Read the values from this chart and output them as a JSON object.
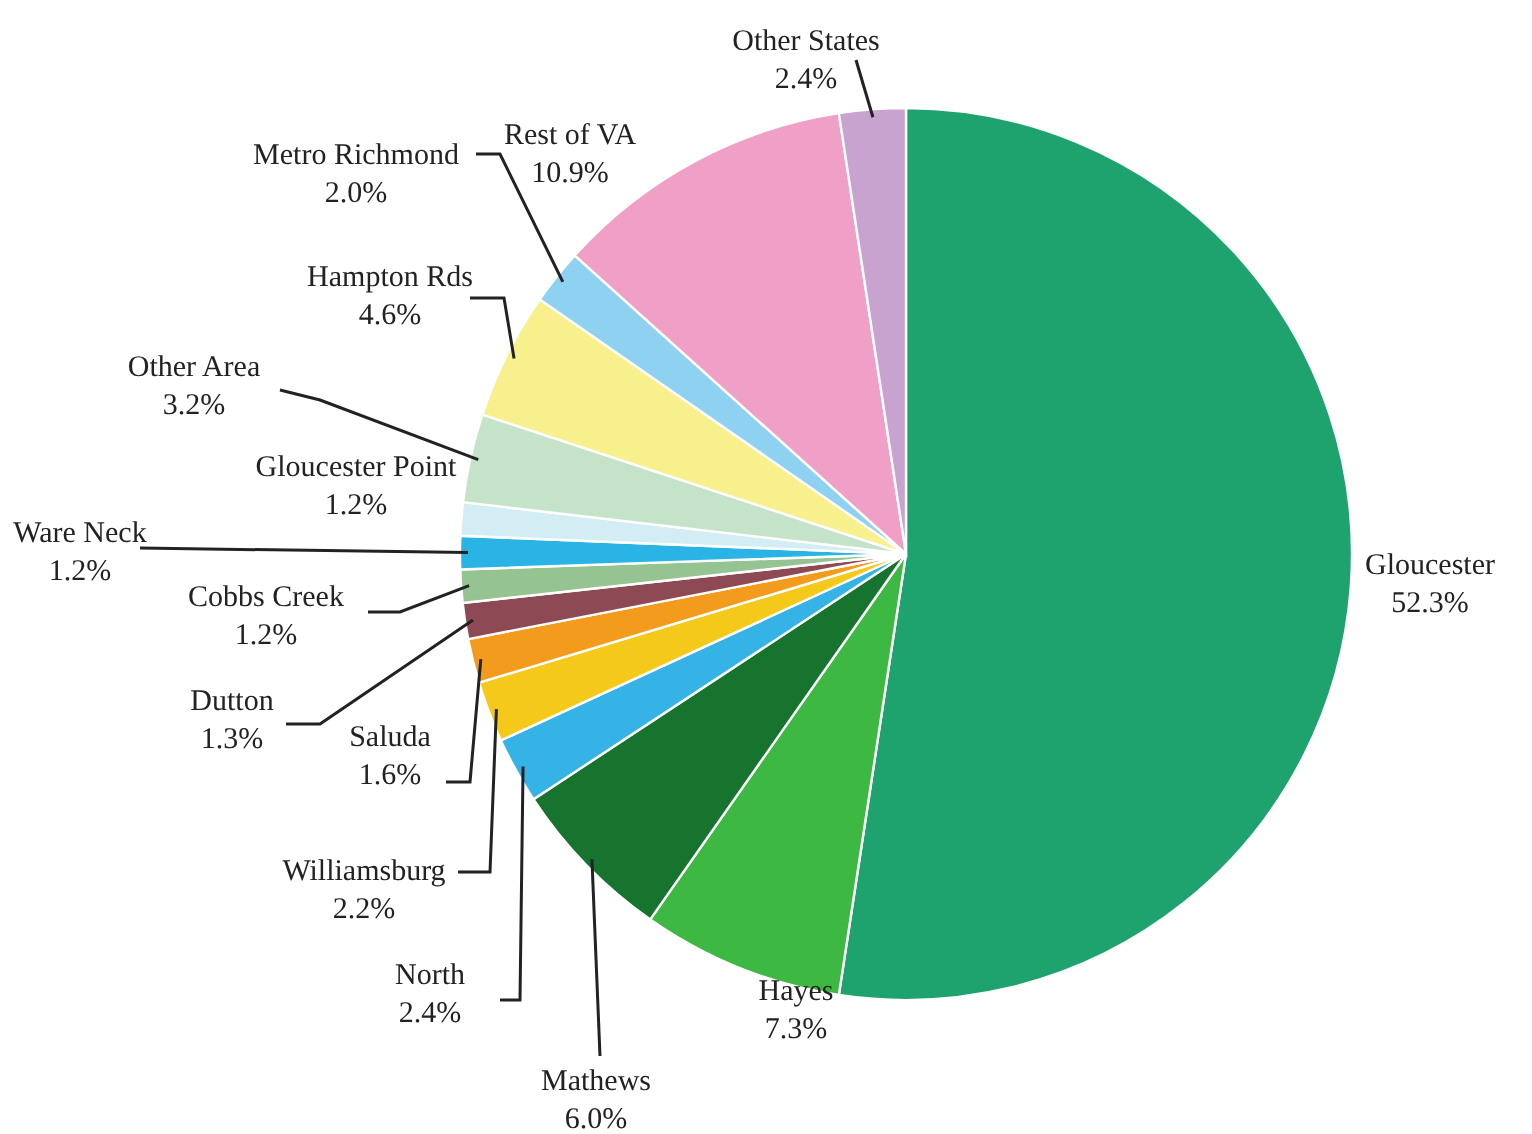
{
  "chart_data": {
    "type": "pie",
    "categories": [
      "Gloucester",
      "Hayes",
      "Mathews",
      "North",
      "Williamsburg",
      "Saluda",
      "Dutton",
      "Cobbs Creek",
      "Ware Neck",
      "Gloucester Point",
      "Other Area",
      "Hampton Rds",
      "Metro Richmond",
      "Rest of VA",
      "Other States"
    ],
    "values": [
      52.3,
      7.3,
      6.0,
      2.4,
      2.2,
      1.6,
      1.3,
      1.2,
      1.2,
      1.2,
      3.2,
      4.6,
      2.0,
      10.9,
      2.4
    ],
    "value_labels": [
      "52.3%",
      "7.3%",
      "6.0%",
      "2.4%",
      "2.2%",
      "1.6%",
      "1.3%",
      "1.2%",
      "1.2%",
      "1.2%",
      "3.2%",
      "4.6%",
      "2.0%",
      "10.9%",
      "2.4%"
    ],
    "colors": [
      "#1fa36e",
      "#3db843",
      "#17742f",
      "#36b3e6",
      "#f5c919",
      "#f29b1c",
      "#8e4a54",
      "#96c392",
      "#2ab4e6",
      "#d3edf5",
      "#c4e3c9",
      "#f8f08c",
      "#8fd1f0",
      "#f0a0c6",
      "#c9a3d0"
    ]
  }
}
